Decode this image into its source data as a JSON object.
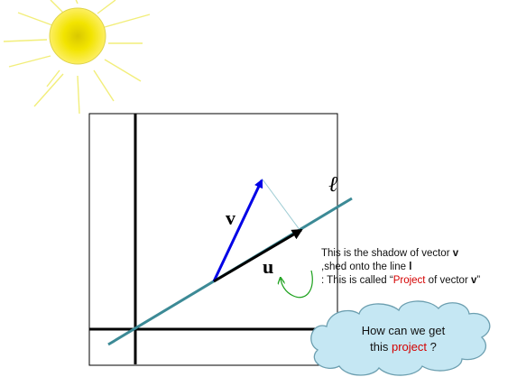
{
  "diagram": {
    "vector_v_label": "v",
    "vector_u_label": "u",
    "line_label": "ℓ",
    "note": {
      "line1_prefix": "This is the shadow of vector ",
      "line1_bold": "v",
      "line2_prefix": ",shed onto the line ",
      "line2_bold": "l",
      "line3_prefix": ": This is called “",
      "line3_red": "Project",
      "line3_mid": " of vector ",
      "line3_bold": "v",
      "line3_end": "”"
    },
    "cloud": {
      "line1": "How can we get",
      "line2_prefix": "this ",
      "line2_red": "project",
      "line2_suffix": " ?"
    }
  },
  "colors": {
    "sun": "#f5e600",
    "sun_rays": "#f2ee7a",
    "vector_v": "#0000e6",
    "vector_u": "#000000",
    "line_l": "#3c8a96",
    "cloud_fill": "#c5e7f3",
    "cloud_stroke": "#6c9fb0",
    "accent_red": "#d40000"
  }
}
